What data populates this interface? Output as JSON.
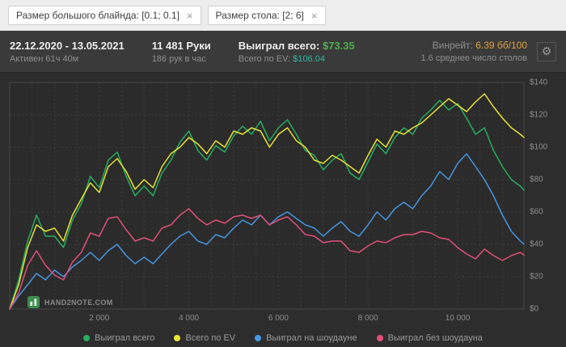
{
  "filter_bar": {
    "chips": [
      {
        "label": "Размер большого блайнда: [0.1; 0.1]",
        "close": "×"
      },
      {
        "label": "Размер стола: [2; 6]",
        "close": "×"
      }
    ]
  },
  "header": {
    "date_range": "22.12.2020 - 13.05.2021",
    "active_time": "Активен 61ч 40м",
    "hands": "11 481 Руки",
    "hands_per_hour": "186 рук в час",
    "won_label": "Выиграл всего:",
    "won_value": "$73.35",
    "ev_label": "Всего по EV:",
    "ev_value": "$106.04",
    "winrate_label": "Винрейт:",
    "winrate_value": "6.39 бб/100",
    "avg_tables": "1.6 среднее число столов",
    "gear_icon": "⚙"
  },
  "colors": {
    "won": "#4caf50",
    "ev": "#2fb5a3",
    "winrate": "#e2a23b"
  },
  "watermark": "HAND2NOTE.COM",
  "chart_data": {
    "type": "line",
    "xlim": [
      0,
      11481
    ],
    "ylim": [
      0,
      140
    ],
    "x_grid_step": 500,
    "plot_bg": "#2b2b2b",
    "legend_position": "bottom",
    "x_ticks": [
      {
        "v": 2000,
        "label": "2 000"
      },
      {
        "v": 4000,
        "label": "4 000"
      },
      {
        "v": 6000,
        "label": "6 000"
      },
      {
        "v": 8000,
        "label": "8 000"
      },
      {
        "v": 10000,
        "label": "10 000"
      }
    ],
    "y_ticks": [
      {
        "v": 0,
        "label": "$0"
      },
      {
        "v": 20,
        "label": "$20"
      },
      {
        "v": 40,
        "label": "$40"
      },
      {
        "v": 60,
        "label": "$60"
      },
      {
        "v": 80,
        "label": "$80"
      },
      {
        "v": 100,
        "label": "$100"
      },
      {
        "v": 120,
        "label": "$120"
      },
      {
        "v": 140,
        "label": "$140"
      }
    ],
    "x": [
      0,
      200,
      400,
      600,
      800,
      1000,
      1200,
      1400,
      1600,
      1800,
      2000,
      2200,
      2400,
      2600,
      2800,
      3000,
      3200,
      3400,
      3600,
      3800,
      4000,
      4200,
      4400,
      4600,
      4800,
      5000,
      5200,
      5400,
      5600,
      5800,
      6000,
      6200,
      6400,
      6600,
      6800,
      7000,
      7200,
      7400,
      7600,
      7800,
      8000,
      8200,
      8400,
      8600,
      8800,
      9000,
      9200,
      9400,
      9600,
      9800,
      10000,
      10200,
      10400,
      10600,
      10800,
      11000,
      11200,
      11400,
      11481
    ],
    "series": [
      {
        "name": "Выиграл всего",
        "color": "#27ae60",
        "values": [
          0,
          18,
          42,
          58,
          45,
          45,
          38,
          55,
          65,
          82,
          75,
          92,
          97,
          82,
          70,
          76,
          70,
          84,
          92,
          103,
          110,
          98,
          92,
          101,
          97,
          107,
          113,
          108,
          116,
          104,
          112,
          117,
          108,
          98,
          95,
          86,
          92,
          96,
          84,
          80,
          91,
          102,
          96,
          106,
          112,
          108,
          118,
          123,
          129,
          123,
          127,
          118,
          108,
          112,
          98,
          88,
          80,
          76,
          73.35
        ]
      },
      {
        "name": "Всего по EV",
        "color": "#e8e337",
        "values": [
          0,
          15,
          38,
          52,
          48,
          50,
          42,
          58,
          68,
          78,
          72,
          88,
          93,
          85,
          74,
          80,
          75,
          88,
          96,
          100,
          106,
          102,
          96,
          104,
          100,
          110,
          108,
          112,
          110,
          100,
          108,
          112,
          104,
          100,
          92,
          90,
          95,
          92,
          88,
          84,
          95,
          105,
          100,
          110,
          108,
          112,
          115,
          120,
          125,
          130,
          126,
          122,
          128,
          133,
          125,
          118,
          112,
          108,
          106.04
        ]
      },
      {
        "name": "Выиграл на шоудауне",
        "color": "#4596e0",
        "values": [
          0,
          8,
          15,
          22,
          18,
          24,
          20,
          26,
          30,
          35,
          30,
          36,
          40,
          33,
          28,
          32,
          28,
          34,
          40,
          45,
          48,
          42,
          40,
          46,
          44,
          50,
          55,
          52,
          58,
          52,
          57,
          60,
          56,
          52,
          50,
          45,
          50,
          54,
          48,
          45,
          52,
          60,
          55,
          62,
          66,
          62,
          70,
          76,
          85,
          80,
          90,
          96,
          88,
          80,
          70,
          58,
          48,
          42,
          40
        ]
      },
      {
        "name": "Выиграл без шоудауна",
        "color": "#e0507a",
        "values": [
          0,
          10,
          27,
          36,
          27,
          21,
          18,
          29,
          35,
          47,
          45,
          56,
          57,
          49,
          42,
          44,
          42,
          50,
          52,
          58,
          62,
          56,
          52,
          55,
          53,
          57,
          58,
          56,
          58,
          52,
          55,
          57,
          52,
          46,
          45,
          41,
          42,
          42,
          36,
          35,
          39,
          42,
          41,
          44,
          46,
          46,
          48,
          47,
          44,
          43,
          38,
          34,
          31,
          37,
          33,
          30,
          33,
          35,
          33.35
        ]
      }
    ]
  }
}
